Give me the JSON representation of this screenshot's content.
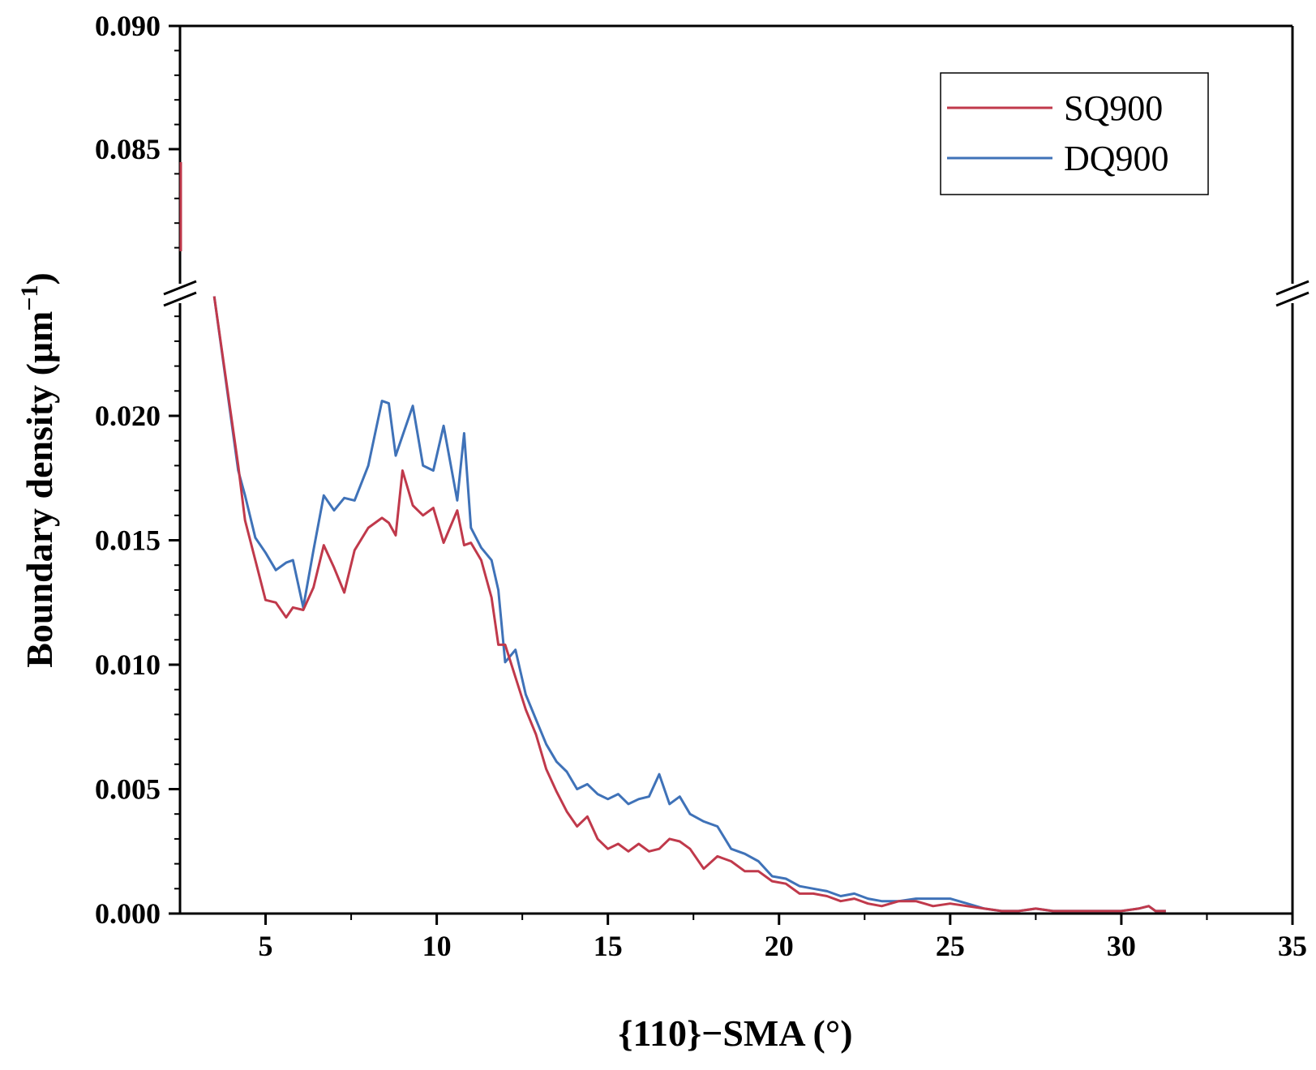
{
  "chart_data": {
    "type": "line",
    "title": "",
    "xlabel": "{110}−SMA (°)",
    "ylabel": "Boundary density (μm",
    "ylabel_sup": "−1",
    "ylabel_close": ")",
    "xlim": [
      2.5,
      35
    ],
    "x_ticks": [
      5,
      10,
      15,
      20,
      25,
      30,
      35
    ],
    "x_tick_labels": [
      "5",
      "10",
      "15",
      "20",
      "25",
      "30",
      "35"
    ],
    "y_axis_break": true,
    "y_lower_range": [
      0.0,
      0.025
    ],
    "y_upper_range": [
      0.08,
      0.09
    ],
    "y_ticks_lower": [
      0.0,
      0.005,
      0.01,
      0.015,
      0.02
    ],
    "y_tick_labels_lower": [
      "0.000",
      "0.005",
      "0.010",
      "0.015",
      "0.020"
    ],
    "y_ticks_upper": [
      0.085,
      0.09
    ],
    "y_tick_labels_upper": [
      "0.085",
      "0.090"
    ],
    "legend_position": "top-right",
    "grid": false,
    "series": [
      {
        "name": "SQ900",
        "color": "#c0394b",
        "x": [
          3.5,
          4.2,
          4.4,
          4.7,
          5.0,
          5.3,
          5.6,
          5.8,
          6.1,
          6.4,
          6.7,
          7.0,
          7.3,
          7.6,
          8.0,
          8.4,
          8.6,
          8.8,
          9.0,
          9.3,
          9.6,
          9.9,
          10.2,
          10.6,
          10.8,
          11.0,
          11.3,
          11.6,
          11.8,
          12.0,
          12.3,
          12.6,
          12.9,
          13.2,
          13.5,
          13.8,
          14.1,
          14.4,
          14.7,
          15.0,
          15.3,
          15.6,
          15.9,
          16.2,
          16.5,
          16.8,
          17.1,
          17.4,
          17.8,
          18.2,
          18.6,
          19.0,
          19.4,
          19.8,
          20.2,
          20.6,
          21.0,
          21.4,
          21.8,
          22.2,
          22.6,
          23.0,
          23.5,
          24.0,
          24.5,
          25.0,
          25.5,
          26.0,
          26.5,
          27.0,
          27.5,
          28.0,
          28.5,
          29.0,
          29.5,
          30.0,
          30.5,
          30.8,
          31.0,
          31.3
        ],
        "y": [
          0.0248,
          0.018,
          0.0158,
          0.0142,
          0.0126,
          0.0125,
          0.0119,
          0.0123,
          0.0122,
          0.0131,
          0.0148,
          0.0139,
          0.0129,
          0.0146,
          0.0155,
          0.0159,
          0.0157,
          0.0152,
          0.0178,
          0.0164,
          0.016,
          0.0163,
          0.0149,
          0.0162,
          0.0148,
          0.0149,
          0.0142,
          0.0127,
          0.0108,
          0.0108,
          0.0095,
          0.0082,
          0.0072,
          0.0058,
          0.0049,
          0.0041,
          0.0035,
          0.0039,
          0.003,
          0.0026,
          0.0028,
          0.0025,
          0.0028,
          0.0025,
          0.0026,
          0.003,
          0.0029,
          0.0026,
          0.0018,
          0.0023,
          0.0021,
          0.0017,
          0.0017,
          0.0013,
          0.0012,
          0.0008,
          0.0008,
          0.0007,
          0.0005,
          0.0006,
          0.0004,
          0.0003,
          0.0005,
          0.0005,
          0.0003,
          0.0004,
          0.0003,
          0.0002,
          0.0001,
          0.0001,
          0.0002,
          0.0001,
          0.0001,
          0.0001,
          0.0001,
          0.0001,
          0.0002,
          0.0003,
          0.0001,
          0.0001
        ]
      },
      {
        "name": "DQ900",
        "color": "#3f72b8",
        "x": [
          3.5,
          4.2,
          4.4,
          4.7,
          5.0,
          5.3,
          5.6,
          5.8,
          6.1,
          6.4,
          6.7,
          7.0,
          7.3,
          7.6,
          8.0,
          8.4,
          8.6,
          8.8,
          9.0,
          9.3,
          9.6,
          9.9,
          10.2,
          10.6,
          10.8,
          11.0,
          11.3,
          11.6,
          11.8,
          12.0,
          12.3,
          12.6,
          12.9,
          13.2,
          13.5,
          13.8,
          14.1,
          14.4,
          14.7,
          15.0,
          15.3,
          15.6,
          15.9,
          16.2,
          16.5,
          16.8,
          17.1,
          17.4,
          17.8,
          18.2,
          18.6,
          19.0,
          19.4,
          19.8,
          20.2,
          20.6,
          21.0,
          21.4,
          21.8,
          22.2,
          22.6,
          23.0,
          23.5,
          24.0,
          24.5,
          25.0,
          25.5,
          26.0,
          26.5,
          27.0,
          27.5,
          28.0,
          28.5,
          29.0,
          29.5,
          30.0,
          30.5,
          30.8,
          31.0,
          31.3
        ],
        "y": [
          0.0248,
          0.0178,
          0.0168,
          0.0151,
          0.0145,
          0.0138,
          0.0141,
          0.0142,
          0.0123,
          0.0146,
          0.0168,
          0.0162,
          0.0167,
          0.0166,
          0.018,
          0.0206,
          0.0205,
          0.0184,
          0.0192,
          0.0204,
          0.018,
          0.0178,
          0.0196,
          0.0166,
          0.0193,
          0.0155,
          0.0147,
          0.0142,
          0.013,
          0.0101,
          0.0106,
          0.0088,
          0.0078,
          0.0068,
          0.0061,
          0.0057,
          0.005,
          0.0052,
          0.0048,
          0.0046,
          0.0048,
          0.0044,
          0.0046,
          0.0047,
          0.0056,
          0.0044,
          0.0047,
          0.004,
          0.0037,
          0.0035,
          0.0026,
          0.0024,
          0.0021,
          0.0015,
          0.0014,
          0.0011,
          0.001,
          0.0009,
          0.0007,
          0.0008,
          0.0006,
          0.0005,
          0.0005,
          0.0006,
          0.0006,
          0.0006,
          0.0004,
          0.0002,
          0.0001,
          0.0001,
          0.0002,
          0.0001,
          0.0001,
          0.0001,
          0.0001,
          0.0001,
          0.0002,
          0.0003,
          0.0001,
          0.0001
        ]
      }
    ]
  }
}
